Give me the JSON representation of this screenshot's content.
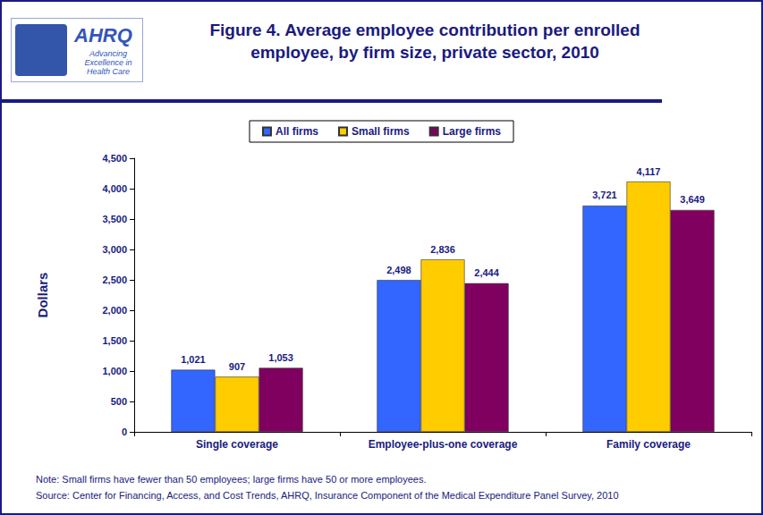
{
  "logo": {
    "name": "AHRQ",
    "tagline": "Advancing Excellence in Health Care"
  },
  "chart_data": {
    "type": "bar",
    "title": "Figure 4. Average employee contribution per enrolled\nemployee, by firm size, private sector, 2010",
    "y_label": "Dollars",
    "categories": [
      "Single coverage",
      "Employee-plus-one coverage",
      "Family coverage"
    ],
    "series": [
      {
        "name": "All firms",
        "color": "#3366ff",
        "values": [
          1021,
          2498,
          3721
        ],
        "value_labels": [
          "1,021",
          "2,498",
          "3,721"
        ]
      },
      {
        "name": "Small firms",
        "color": "#ffcc00",
        "values": [
          907,
          2836,
          4117
        ],
        "value_labels": [
          "907",
          "2,836",
          "4,117"
        ]
      },
      {
        "name": "Large firms",
        "color": "#800060",
        "values": [
          1053,
          2444,
          3649
        ],
        "value_labels": [
          "1,053",
          "2,444",
          "3,649"
        ]
      }
    ],
    "ylim": [
      0,
      4500
    ],
    "yticks": [
      0,
      500,
      {
        "value": 1000,
        "label": "1,000"
      },
      {
        "value": 1500,
        "label": "1,500"
      },
      {
        "value": 2000,
        "label": "2,000"
      },
      {
        "value": 2500,
        "label": "2,500"
      },
      {
        "value": 3000,
        "label": "3,000"
      },
      {
        "value": 3500,
        "label": "3,500"
      },
      {
        "value": 4000,
        "label": "4,000"
      },
      {
        "value": 4500,
        "label": "4,500"
      }
    ],
    "grid": false,
    "legend": "top",
    "data_labels": true,
    "annotations": [
      "Note: Small firms have fewer than 50 employees; large firms have 50 or more employees.",
      "Source: Center for Financing, Access, and Cost Trends, AHRQ, Insurance Component of the Medical Expenditure Panel Survey, 2010"
    ]
  }
}
